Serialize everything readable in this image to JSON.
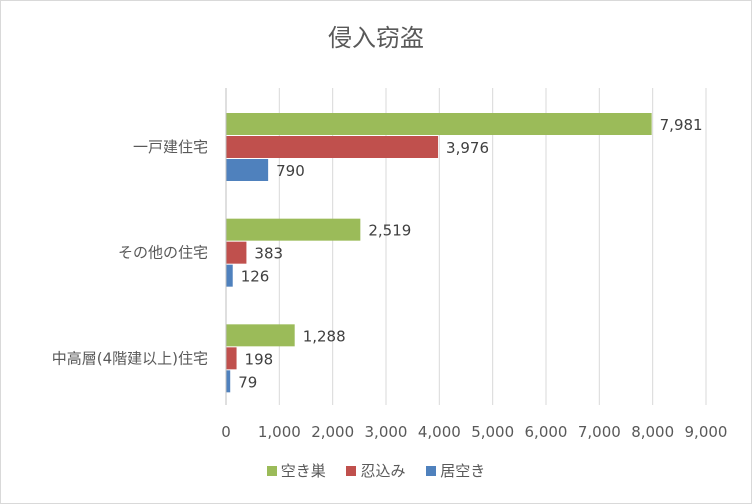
{
  "chart_data": {
    "type": "bar",
    "orientation": "horizontal",
    "title": "侵入窃盗",
    "categories": [
      "一戸建住宅",
      "その他の住宅",
      "中高層(4階建以上)住宅"
    ],
    "series": [
      {
        "name": "空き巣",
        "color": "#9bbb59",
        "values": [
          7981,
          2519,
          1288
        ],
        "labels": [
          "7,981",
          "2,519",
          "1,288"
        ]
      },
      {
        "name": "忍込み",
        "color": "#c0504d",
        "values": [
          3976,
          383,
          198
        ],
        "labels": [
          "3,976",
          "383",
          "198"
        ]
      },
      {
        "name": "居空き",
        "color": "#4f81bd",
        "values": [
          790,
          126,
          79
        ],
        "labels": [
          "790",
          "126",
          "79"
        ]
      }
    ],
    "xlim": [
      0,
      9000
    ],
    "x_ticks": [
      "0",
      "1,000",
      "2,000",
      "3,000",
      "4,000",
      "5,000",
      "6,000",
      "7,000",
      "8,000",
      "9,000"
    ],
    "grid": true,
    "legend_position": "bottom"
  }
}
